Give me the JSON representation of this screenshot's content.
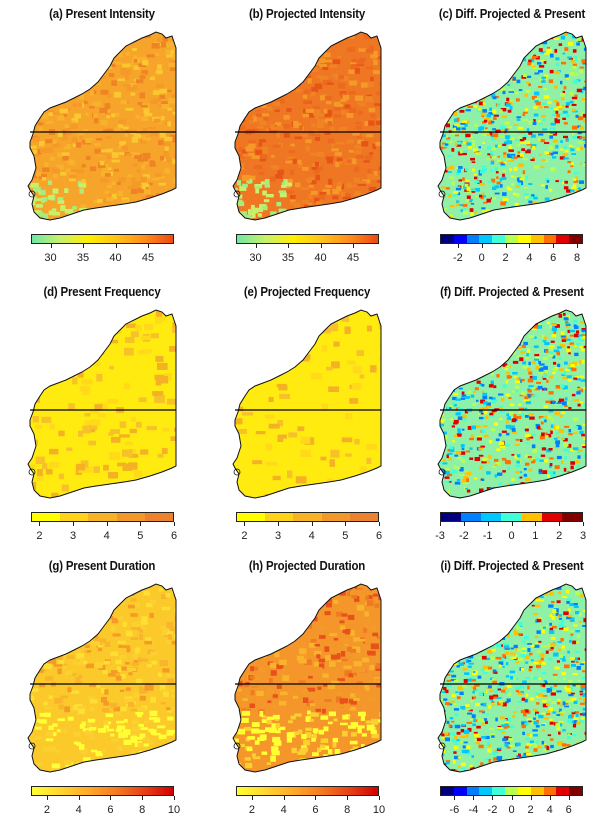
{
  "panels": [
    {
      "title": "(a) Present Intensity",
      "scheme": "intensity",
      "ticks": [
        "30",
        "35",
        "40",
        "45"
      ]
    },
    {
      "title": "(b) Projected Intensity",
      "scheme": "intensity",
      "ticks": [
        "30",
        "35",
        "40",
        "45"
      ]
    },
    {
      "title": "(c) Diff. Projected & Present",
      "scheme": "diff",
      "ticks": [
        "-2",
        "0",
        "2",
        "4",
        "6",
        "8"
      ]
    },
    {
      "title": "(d) Present Frequency",
      "scheme": "frequency",
      "ticks": [
        "2",
        "3",
        "4",
        "5",
        "6"
      ]
    },
    {
      "title": "(e) Projected Frequency",
      "scheme": "frequency",
      "ticks": [
        "2",
        "3",
        "4",
        "5",
        "6"
      ]
    },
    {
      "title": "(f) Diff. Projected & Present",
      "scheme": "diff",
      "ticks": [
        "-3",
        "-2",
        "-1",
        "0",
        "1",
        "2",
        "3"
      ]
    },
    {
      "title": "(g) Present Duration",
      "scheme": "duration",
      "ticks": [
        "2",
        "4",
        "6",
        "8",
        "10"
      ]
    },
    {
      "title": "(h) Projected Duration",
      "scheme": "duration",
      "ticks": [
        "2",
        "4",
        "6",
        "8",
        "10"
      ]
    },
    {
      "title": "(i) Diff. Projected & Present",
      "scheme": "diff",
      "ticks": [
        "-6",
        "-4",
        "-2",
        "0",
        "2",
        "4",
        "6"
      ]
    }
  ],
  "colors": {
    "intensity_gradient": [
      "#6ee8a6",
      "#c8f06a",
      "#ffef00",
      "#ffc21a",
      "#ff8c1a",
      "#ec4a14"
    ],
    "frequency_steps": [
      "#ffff00",
      "#ffd21a",
      "#f8b226",
      "#f2972a",
      "#ec8230"
    ],
    "duration_gradient": [
      "#ffff33",
      "#ffd630",
      "#ffaa28",
      "#f57a20",
      "#e84018",
      "#d20000"
    ],
    "diff_steps": [
      "#00007f",
      "#0000ff",
      "#0080ff",
      "#00c8ff",
      "#40ffd8",
      "#b8ff50",
      "#ffff00",
      "#ffc000",
      "#ff7000",
      "#e00000",
      "#800000"
    ],
    "map_fill_intensity_present": "#f7a52a",
    "map_fill_intensity_projected": "#ef7622",
    "map_fill_frequency": "#ffeb10",
    "map_fill_duration_present": "#fbca2a",
    "map_fill_duration_projected": "#f4962a",
    "map_fill_diff": "#8ff0a8",
    "outline": "#111111"
  }
}
